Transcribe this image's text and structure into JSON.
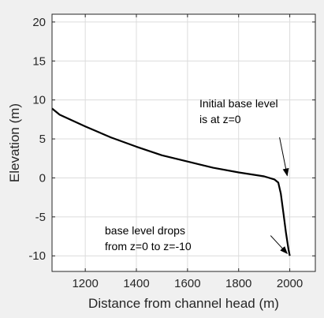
{
  "chart_data": {
    "type": "line",
    "title": "",
    "xlabel": "Distance from channel head (m)",
    "ylabel": "Elevation (m)",
    "xlim": [
      1070,
      2100
    ],
    "ylim": [
      -12,
      21
    ],
    "xticks": [
      1200,
      1400,
      1600,
      1800,
      2000
    ],
    "yticks": [
      20,
      15,
      10,
      5,
      0,
      -5,
      -10
    ],
    "xtick_labels": [
      "1200",
      "1400",
      "1600",
      "1800",
      "2000"
    ],
    "ytick_labels": [
      "20",
      "15",
      "10",
      "5",
      "0",
      "-5",
      "-10"
    ],
    "grid": true,
    "series": [
      {
        "color": "#000000",
        "x": [
          1070,
          1100,
          1200,
          1300,
          1400,
          1500,
          1600,
          1700,
          1800,
          1900,
          1940,
          1955,
          1965,
          1975,
          1985,
          1995,
          2000
        ],
        "y": [
          8.9,
          8.1,
          6.6,
          5.2,
          4.0,
          2.9,
          2.1,
          1.3,
          0.7,
          0.2,
          -0.2,
          -0.6,
          -2.0,
          -4.5,
          -7.0,
          -9.2,
          -10.0
        ]
      }
    ],
    "annotations": [
      {
        "lines": [
          "Initial base level",
          "is at z=0"
        ],
        "arrow_from": [
          1960,
          5.2
        ],
        "arrow_to": [
          1990,
          0.3
        ]
      },
      {
        "lines": [
          "base level drops",
          "from z=0 to z=-10"
        ],
        "arrow_from": [
          1925,
          -7.4
        ],
        "arrow_to": [
          1990,
          -9.7
        ]
      }
    ]
  }
}
